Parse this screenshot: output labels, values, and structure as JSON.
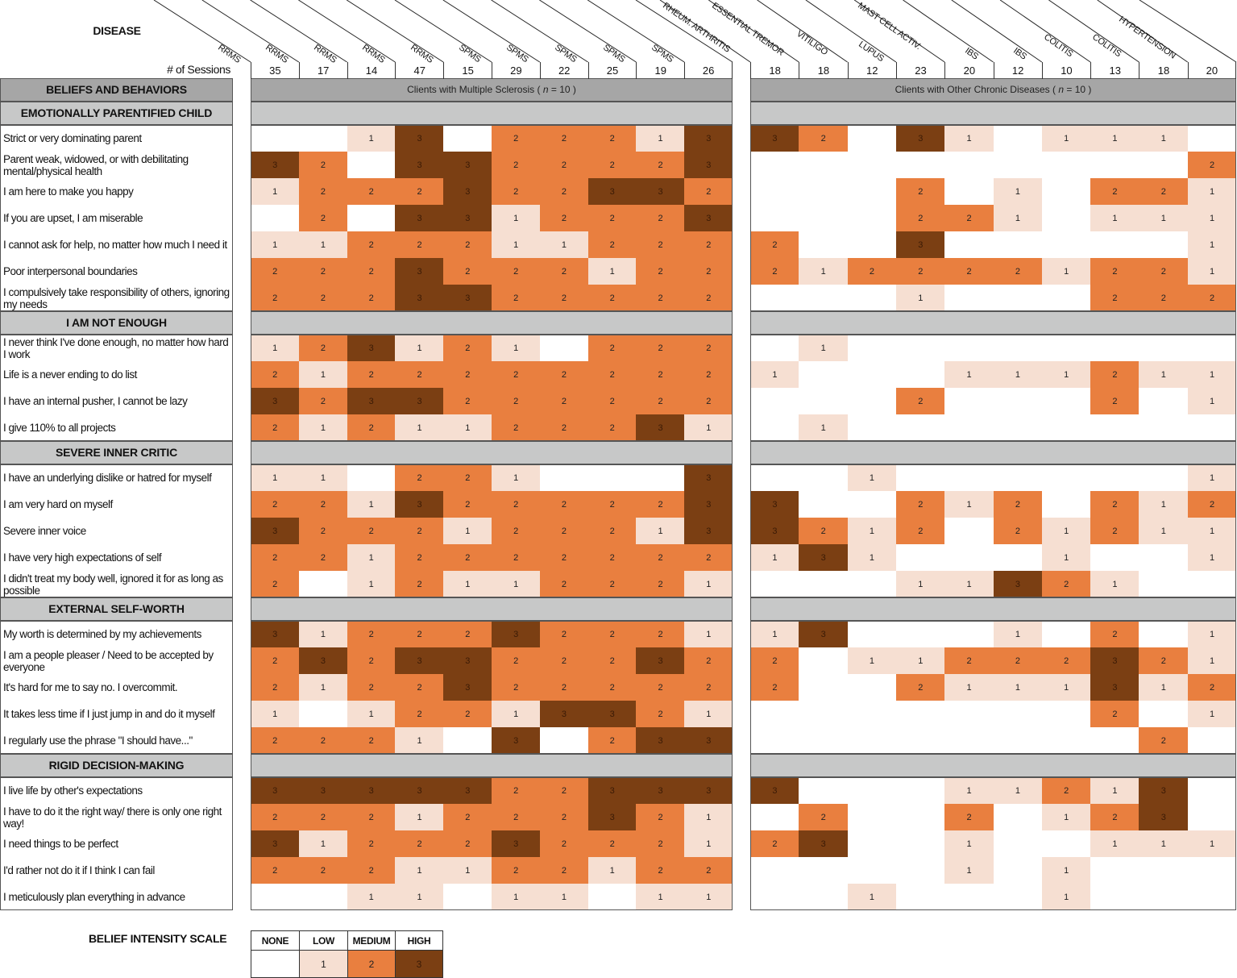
{
  "chart_data": {
    "type": "heatmap",
    "title": "DISEASE",
    "row_header": "BELIEFS AND BEHAVIORS",
    "sessions_label": "# of Sessions",
    "column_groups": [
      {
        "title": "Clients with Multiple Sclerosis (",
        "n_symbol": "n",
        "n_value": "= 10 )",
        "columns": [
          {
            "disease": "RRMS",
            "sessions": "35"
          },
          {
            "disease": "RRMS",
            "sessions": "17"
          },
          {
            "disease": "RRMS",
            "sessions": "14"
          },
          {
            "disease": "RRMS",
            "sessions": "47"
          },
          {
            "disease": "RRMS",
            "sessions": "15"
          },
          {
            "disease": "SPMS",
            "sessions": "29"
          },
          {
            "disease": "SPMS",
            "sessions": "22"
          },
          {
            "disease": "SPMS",
            "sessions": "25"
          },
          {
            "disease": "SPMS",
            "sessions": "19"
          },
          {
            "disease": "SPMS",
            "sessions": "26"
          }
        ]
      },
      {
        "title": "Clients with Other Chronic Diseases (",
        "n_symbol": "n",
        "n_value": "= 10 )",
        "columns": [
          {
            "disease": "RHEUM. ARTHRITIS",
            "sessions": "18"
          },
          {
            "disease": "ESSENTIAL TREMOR",
            "sessions": "18"
          },
          {
            "disease": "VITILIGO",
            "sessions": "12"
          },
          {
            "disease": "LUPUS",
            "sessions": "23"
          },
          {
            "disease": "MAST CELL ACTIV.",
            "sessions": "20"
          },
          {
            "disease": "IBS",
            "sessions": "12"
          },
          {
            "disease": "IBS",
            "sessions": "10"
          },
          {
            "disease": "COLITIS",
            "sessions": "13"
          },
          {
            "disease": "COLITIS",
            "sessions": "18"
          },
          {
            "disease": "HYPERTENSION",
            "sessions": "20"
          }
        ]
      }
    ],
    "sections": [
      {
        "title": "EMOTIONALLY PARENTIFIED CHILD",
        "rows": [
          {
            "label": "Strict or very dominating parent",
            "ms": [
              0,
              0,
              1,
              3,
              0,
              2,
              2,
              2,
              1,
              3
            ],
            "other": [
              3,
              2,
              0,
              3,
              1,
              0,
              1,
              1,
              1,
              0
            ]
          },
          {
            "label": "Parent weak, widowed, or with debilitating mental/physical health",
            "ms": [
              3,
              2,
              0,
              3,
              3,
              2,
              2,
              2,
              2,
              3
            ],
            "other": [
              0,
              0,
              0,
              0,
              0,
              0,
              0,
              0,
              0,
              2
            ]
          },
          {
            "label": "I am here to make you happy",
            "ms": [
              1,
              2,
              2,
              2,
              3,
              2,
              2,
              3,
              3,
              2
            ],
            "other": [
              0,
              0,
              0,
              2,
              0,
              1,
              0,
              2,
              2,
              1
            ]
          },
          {
            "label": "If you are upset, I am miserable",
            "ms": [
              0,
              2,
              0,
              3,
              3,
              1,
              2,
              2,
              2,
              3
            ],
            "other": [
              0,
              0,
              0,
              2,
              2,
              1,
              0,
              1,
              1,
              1
            ]
          },
          {
            "label": "I cannot ask for help, no matter how much I need it",
            "ms": [
              1,
              1,
              2,
              2,
              2,
              1,
              1,
              2,
              2,
              2
            ],
            "other": [
              2,
              0,
              0,
              3,
              0,
              0,
              0,
              0,
              0,
              1
            ]
          },
          {
            "label": "Poor interpersonal boundaries",
            "ms": [
              2,
              2,
              2,
              3,
              2,
              2,
              2,
              1,
              2,
              2
            ],
            "other": [
              2,
              1,
              2,
              2,
              2,
              2,
              1,
              2,
              2,
              1
            ]
          },
          {
            "label": "I compulsively take responsibility of others, ignoring my needs",
            "ms": [
              2,
              2,
              2,
              3,
              3,
              2,
              2,
              2,
              2,
              2
            ],
            "other": [
              0,
              0,
              0,
              1,
              0,
              0,
              0,
              2,
              2,
              2
            ]
          }
        ]
      },
      {
        "title": "I AM NOT ENOUGH",
        "rows": [
          {
            "label": "I never think I've done enough, no matter how hard I work",
            "ms": [
              1,
              2,
              3,
              1,
              2,
              1,
              0,
              2,
              2,
              2
            ],
            "other": [
              0,
              1,
              0,
              0,
              0,
              0,
              0,
              0,
              0,
              0
            ]
          },
          {
            "label": "Life is a never ending to do list",
            "ms": [
              2,
              1,
              2,
              2,
              2,
              2,
              2,
              2,
              2,
              2
            ],
            "other": [
              1,
              0,
              0,
              0,
              1,
              1,
              1,
              2,
              1,
              1
            ]
          },
          {
            "label": "I have an internal pusher, I cannot be lazy",
            "ms": [
              3,
              2,
              3,
              3,
              2,
              2,
              2,
              2,
              2,
              2
            ],
            "other": [
              0,
              0,
              0,
              2,
              0,
              0,
              0,
              2,
              0,
              1
            ]
          },
          {
            "label": "I give 110% to all projects",
            "ms": [
              2,
              1,
              2,
              1,
              1,
              2,
              2,
              2,
              3,
              1
            ],
            "other": [
              0,
              1,
              0,
              0,
              0,
              0,
              0,
              0,
              0,
              0
            ]
          }
        ]
      },
      {
        "title": "SEVERE INNER CRITIC",
        "rows": [
          {
            "label": "I have an underlying dislike or hatred for myself",
            "ms": [
              1,
              1,
              0,
              2,
              2,
              1,
              0,
              0,
              0,
              3
            ],
            "other": [
              0,
              0,
              1,
              0,
              0,
              0,
              0,
              0,
              0,
              1
            ]
          },
          {
            "label": "I am very hard on myself",
            "ms": [
              2,
              2,
              1,
              3,
              2,
              2,
              2,
              2,
              2,
              3
            ],
            "other": [
              3,
              0,
              0,
              2,
              1,
              2,
              0,
              2,
              1,
              2
            ]
          },
          {
            "label": "Severe inner voice",
            "ms": [
              3,
              2,
              2,
              2,
              1,
              2,
              2,
              2,
              1,
              3
            ],
            "other": [
              3,
              2,
              1,
              2,
              0,
              2,
              1,
              2,
              1,
              1
            ]
          },
          {
            "label": "I have very high expectations of self",
            "ms": [
              2,
              2,
              1,
              2,
              2,
              2,
              2,
              2,
              2,
              2
            ],
            "other": [
              1,
              3,
              1,
              0,
              0,
              0,
              1,
              0,
              0,
              1
            ]
          },
          {
            "label": "I didn't treat my body well, ignored it for as long as possible",
            "ms": [
              2,
              0,
              1,
              2,
              1,
              1,
              2,
              2,
              2,
              1
            ],
            "other": [
              0,
              0,
              0,
              1,
              1,
              3,
              2,
              1,
              0,
              0
            ]
          }
        ]
      },
      {
        "title": "EXTERNAL SELF-WORTH",
        "rows": [
          {
            "label": "My worth is determined by my achievements",
            "ms": [
              3,
              1,
              2,
              2,
              2,
              3,
              2,
              2,
              2,
              1
            ],
            "other": [
              1,
              3,
              0,
              0,
              0,
              1,
              0,
              2,
              0,
              1
            ]
          },
          {
            "label": "I am a people pleaser / Need to be accepted by everyone",
            "ms": [
              2,
              3,
              2,
              3,
              3,
              2,
              2,
              2,
              3,
              2
            ],
            "other": [
              2,
              0,
              1,
              1,
              2,
              2,
              2,
              3,
              2,
              1
            ]
          },
          {
            "label": "It's hard for me to say no. I overcommit.",
            "ms": [
              2,
              1,
              2,
              2,
              3,
              2,
              2,
              2,
              2,
              2
            ],
            "other": [
              2,
              0,
              0,
              2,
              1,
              1,
              1,
              3,
              1,
              2
            ]
          },
          {
            "label": "It takes less time if I just jump in and do it myself",
            "ms": [
              1,
              0,
              1,
              2,
              2,
              1,
              3,
              3,
              2,
              1
            ],
            "other": [
              0,
              0,
              0,
              0,
              0,
              0,
              0,
              2,
              0,
              1
            ]
          },
          {
            "label": "I regularly use the phrase \"I should have...\"",
            "ms": [
              2,
              2,
              2,
              1,
              0,
              3,
              0,
              2,
              3,
              3
            ],
            "other": [
              0,
              0,
              0,
              0,
              0,
              0,
              0,
              0,
              2,
              0
            ]
          }
        ]
      },
      {
        "title": "RIGID DECISION-MAKING",
        "rows": [
          {
            "label": "I live life by other's expectations",
            "ms": [
              3,
              3,
              3,
              3,
              3,
              2,
              2,
              3,
              3,
              3
            ],
            "other": [
              3,
              0,
              0,
              0,
              1,
              1,
              2,
              1,
              3,
              0
            ]
          },
          {
            "label": "I have to do it the right way/ there is only one right way!",
            "ms": [
              2,
              2,
              2,
              1,
              2,
              2,
              2,
              3,
              2,
              1
            ],
            "other": [
              0,
              2,
              0,
              0,
              2,
              0,
              1,
              2,
              3,
              0
            ]
          },
          {
            "label": "I need things to be perfect",
            "ms": [
              3,
              1,
              2,
              2,
              2,
              3,
              2,
              2,
              2,
              1
            ],
            "other": [
              2,
              3,
              0,
              0,
              1,
              0,
              0,
              1,
              1,
              1
            ]
          },
          {
            "label": "I'd rather not do it if I think I can fail",
            "ms": [
              2,
              2,
              2,
              1,
              1,
              2,
              2,
              1,
              2,
              2
            ],
            "other": [
              0,
              0,
              0,
              0,
              1,
              0,
              1,
              0,
              0,
              0
            ]
          },
          {
            "label": "I meticulously plan everything in advance",
            "ms": [
              0,
              0,
              1,
              1,
              0,
              1,
              1,
              0,
              1,
              1
            ],
            "other": [
              0,
              0,
              1,
              0,
              0,
              0,
              1,
              0,
              0,
              0
            ]
          }
        ]
      }
    ],
    "scale": {
      "title": "BELIEF INTENSITY SCALE",
      "levels": [
        {
          "name": "NONE",
          "value": "",
          "color": "#ffffff"
        },
        {
          "name": "LOW",
          "value": "1",
          "color": "#f6dfd2"
        },
        {
          "name": "MEDIUM",
          "value": "2",
          "color": "#e97f3f"
        },
        {
          "name": "HIGH",
          "value": "3",
          "color": "#7b3f13"
        }
      ]
    },
    "colors": {
      "header_dark": "#a6a6a6",
      "header_light": "#c7c8c8"
    }
  }
}
